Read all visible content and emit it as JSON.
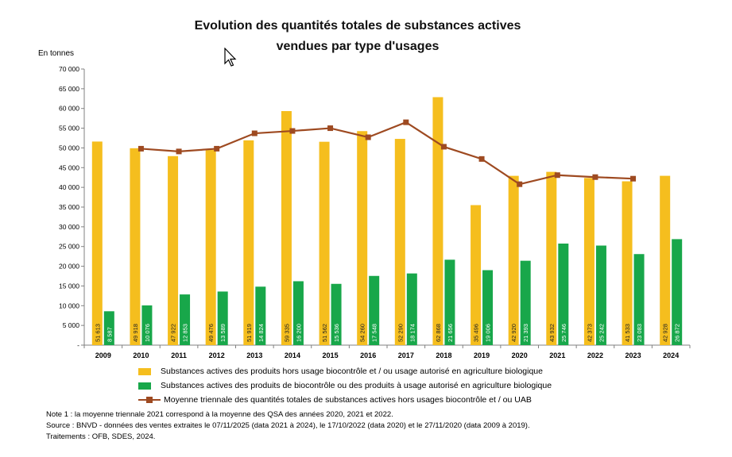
{
  "title_line1": "Evolution des quantités totales de substances actives",
  "title_line2": "vendues par type d'usages",
  "unit_label": "En tonnes",
  "colors": {
    "series1": "#f5be1e",
    "series2": "#18a74a",
    "series3": "#9e4a21"
  },
  "chart_data": {
    "type": "bar",
    "categories": [
      "2009",
      "2010",
      "2011",
      "2012",
      "2013",
      "2014",
      "2015",
      "2016",
      "2017",
      "2018",
      "2019",
      "2020",
      "2021",
      "2022",
      "2023",
      "2024"
    ],
    "y_ticks": [
      "-",
      "5 000",
      "10 000",
      "15 000",
      "20 000",
      "25 000",
      "30 000",
      "35 000",
      "40 000",
      "45 000",
      "50 000",
      "55 000",
      "60 000",
      "65 000",
      "70 000"
    ],
    "ylim": [
      0,
      70000
    ],
    "grid": false,
    "series": [
      {
        "name": "Substances actives des produits hors usage  biocontrôle et / ou usage autorisé en agriculture biologique",
        "type": "bar",
        "values": [
          51613,
          49918,
          47922,
          49476,
          51919,
          59335,
          51562,
          54260,
          52290,
          62868,
          35496,
          42920,
          43932,
          42373,
          41533,
          42928
        ],
        "labels": [
          "51 613",
          "49 918",
          "47 922",
          "49 476",
          "51 919",
          "59 335",
          "51 562",
          "54 260",
          "52 290",
          "62 868",
          "35 496",
          "42 920",
          "43 932",
          "42 373",
          "41 533",
          "42 928"
        ]
      },
      {
        "name": "Substances actives des produits de biocontrôle ou des produits à usage autorisé en agriculture biologique",
        "type": "bar",
        "values": [
          8587,
          10076,
          12853,
          13589,
          14824,
          16200,
          15536,
          17548,
          18174,
          21656,
          19006,
          21393,
          25746,
          25242,
          23083,
          26872
        ],
        "labels": [
          "8 587",
          "10 076",
          "12 853",
          "13 589",
          "14 824",
          "16 200",
          "15 536",
          "17 548",
          "18 174",
          "21 656",
          "19 006",
          "21 393",
          "25 746",
          "25 242",
          "23 083",
          "26 872"
        ]
      },
      {
        "name": "Moyenne triennale des quantités totales de substances actives hors usages  biocontrôle et / ou UAB",
        "type": "line",
        "values": [
          null,
          49800,
          49100,
          49800,
          53700,
          54300,
          55000,
          52700,
          56500,
          50300,
          47200,
          40800,
          43100,
          42600,
          42200,
          null
        ]
      }
    ]
  },
  "notes": [
    "Note 1 : la moyenne triennale 2021 correspond à la moyenne des QSA des années 2020, 2021 et 2022.",
    "Source : BNVD - données des ventes extraites le 07/11/2025 (data 2021 à 2024), le 17/10/2022 (data 2020) et le 27/11/2020 (data 2009 à 2019).",
    "Traitements : OFB, SDES, 2024."
  ]
}
